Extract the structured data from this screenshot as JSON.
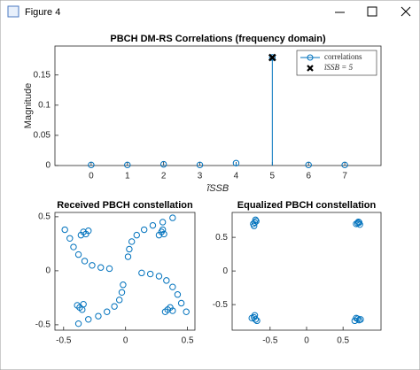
{
  "window": {
    "title": "Figure 4"
  },
  "chart_data": [
    {
      "type": "stem",
      "title": "PBCH DM-RS Correlations (frequency domain)",
      "xlabel": "ĩSSB",
      "ylabel": "Magnitude",
      "x": [
        0,
        1,
        2,
        3,
        4,
        5,
        6,
        7
      ],
      "series": [
        {
          "name": "correlations",
          "color": "#0072bd",
          "values": [
            0.001,
            0.001,
            0.002,
            0.001,
            0.004,
            0.179,
            0.001,
            0.001
          ]
        }
      ],
      "highlight": {
        "name": "ĩSSB = 5",
        "color": "#000000",
        "x": 5,
        "y": 0.179
      },
      "xlim": [
        -1,
        8
      ],
      "xticks": [
        0,
        1,
        2,
        3,
        4,
        5,
        6,
        7
      ],
      "ylim": [
        0,
        0.198
      ],
      "yticks": [
        0,
        0.05,
        0.1,
        0.15
      ],
      "legend": "northeast"
    },
    {
      "type": "scatter",
      "title": "Received PBCH constellation",
      "color": "#0072bd",
      "x": [
        -0.49,
        -0.45,
        -0.42,
        -0.38,
        -0.33,
        -0.27,
        -0.2,
        -0.13,
        0.38,
        0.3,
        0.22,
        0.15,
        0.09,
        0.05,
        0.03,
        0.02,
        0.49,
        0.45,
        0.42,
        0.38,
        0.33,
        0.27,
        0.2,
        0.13,
        -0.38,
        -0.3,
        -0.22,
        -0.15,
        -0.09,
        -0.05,
        -0.03,
        -0.02,
        -0.34,
        -0.32,
        -0.36,
        -0.3,
        0.29,
        0.31,
        0.27,
        0.3,
        -0.37,
        -0.35,
        -0.39,
        -0.34,
        0.34,
        0.36,
        0.32,
        0.38
      ],
      "values": [
        0.38,
        0.3,
        0.22,
        0.15,
        0.09,
        0.05,
        0.03,
        0.02,
        0.49,
        0.45,
        0.42,
        0.38,
        0.33,
        0.27,
        0.2,
        0.13,
        -0.38,
        -0.3,
        -0.22,
        -0.15,
        -0.09,
        -0.05,
        -0.03,
        -0.02,
        -0.49,
        -0.45,
        -0.42,
        -0.38,
        -0.33,
        -0.27,
        -0.2,
        -0.13,
        0.36,
        0.34,
        0.33,
        0.37,
        0.36,
        0.34,
        0.33,
        0.38,
        -0.34,
        -0.36,
        -0.32,
        -0.31,
        -0.36,
        -0.34,
        -0.38,
        -0.37
      ],
      "xlim": [
        -0.57,
        0.56
      ],
      "xticks": [
        -0.5,
        0,
        0.5
      ],
      "ylim": [
        -0.55,
        0.54
      ],
      "yticks": [
        -0.5,
        0,
        0.5
      ]
    },
    {
      "type": "scatter",
      "title": "Equalized PBCH constellation",
      "color": "#0072bd",
      "x": [
        -0.71,
        -0.73,
        -0.69,
        -0.72,
        -0.7,
        0.7,
        0.72,
        0.68,
        0.73,
        0.71,
        -0.72,
        -0.7,
        -0.75,
        -0.68,
        -0.71,
        0.7,
        0.72,
        0.68,
        0.74,
        0.66
      ],
      "values": [
        0.72,
        0.7,
        0.74,
        0.67,
        0.76,
        0.71,
        0.72,
        0.7,
        0.69,
        0.73,
        -0.69,
        -0.72,
        -0.7,
        -0.74,
        -0.66,
        -0.71,
        -0.73,
        -0.7,
        -0.72,
        -0.74
      ],
      "xlim": [
        -1.02,
        1.02
      ],
      "xticks": [
        -0.5,
        0,
        0.5
      ],
      "ylim": [
        -0.88,
        0.87
      ],
      "yticks": [
        -0.5,
        0,
        0.5
      ]
    }
  ]
}
